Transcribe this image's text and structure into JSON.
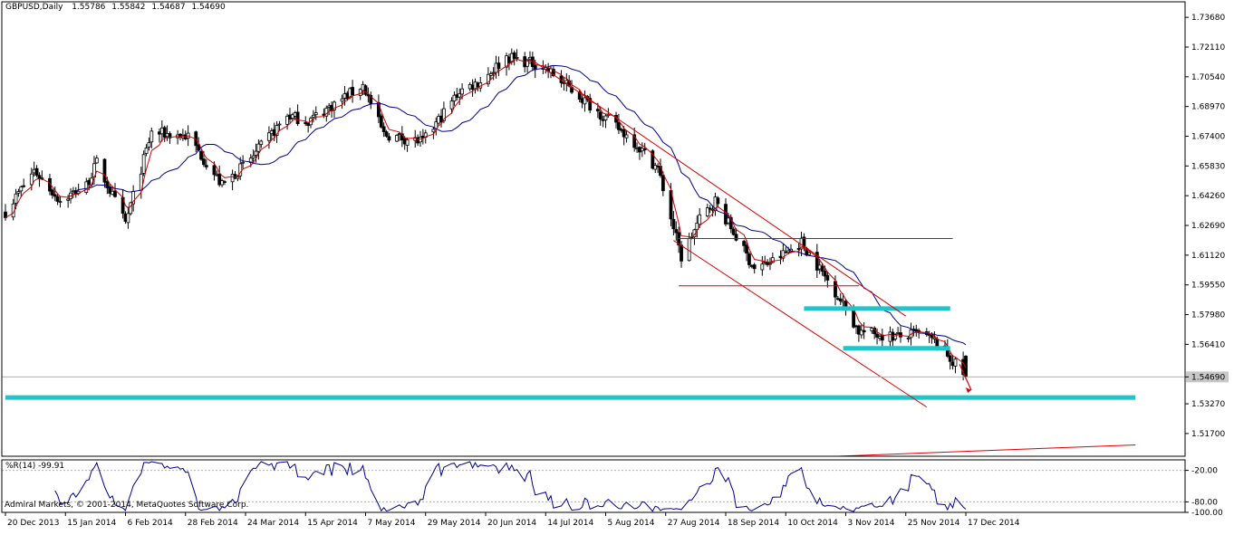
{
  "header": {
    "symbol": "GBPUSD,Daily",
    "open": "1.55786",
    "high": "1.55842",
    "low": "1.54687",
    "close": "1.54690"
  },
  "indicator": {
    "label": "%R(14) -99.91",
    "ticks": [
      "-20.00",
      "-80.00",
      "-100.00"
    ]
  },
  "copyright": "Admiral Markets, © 2001-2014, MetaQuotes Software Corp.",
  "price_axis": {
    "ticks": [
      "1.73680",
      "1.72110",
      "1.70540",
      "1.68970",
      "1.67400",
      "1.65830",
      "1.64260",
      "1.62690",
      "1.61120",
      "1.59550",
      "1.57980",
      "1.56410",
      "1.54690",
      "1.53270",
      "1.51700"
    ],
    "current_price": "1.54690"
  },
  "date_axis": {
    "ticks": [
      "20 Dec 2013",
      "15 Jan 2014",
      "6 Feb 2014",
      "28 Feb 2014",
      "24 Mar 2014",
      "15 Apr 2014",
      "7 May 2014",
      "29 May 2014",
      "20 Jun 2014",
      "14 Jul 2014",
      "5 Aug 2014",
      "27 Aug 2014",
      "18 Sep 2014",
      "10 Oct 2014",
      "3 Nov 2014",
      "25 Nov 2014",
      "17 Dec 2014"
    ]
  },
  "colors": {
    "bull": "#ffffff",
    "bear": "#000000",
    "ma": "#00008b",
    "ema": "#cc0000",
    "trendline": "#dd0000",
    "support": "#22c4cc",
    "wpr": "#00008b",
    "currentline": "#b0b0b0"
  },
  "chart_data": {
    "type": "candlestick",
    "symbol": "GBPUSD",
    "timeframe": "Daily",
    "ylim": [
      1.505,
      1.745
    ],
    "x_start": "2013-12-20",
    "x_end": "2014-12-23",
    "anchors": [
      {
        "date": "2013-12-20",
        "price": 1.634
      },
      {
        "date": "2013-12-31",
        "price": 1.656
      },
      {
        "date": "2014-01-10",
        "price": 1.64
      },
      {
        "date": "2014-01-20",
        "price": 1.648
      },
      {
        "date": "2014-01-24",
        "price": 1.66
      },
      {
        "date": "2014-02-04",
        "price": 1.628
      },
      {
        "date": "2014-02-14",
        "price": 1.676
      },
      {
        "date": "2014-02-28",
        "price": 1.674
      },
      {
        "date": "2014-03-13",
        "price": 1.648
      },
      {
        "date": "2014-03-24",
        "price": 1.662
      },
      {
        "date": "2014-04-07",
        "price": 1.685
      },
      {
        "date": "2014-04-15",
        "price": 1.682
      },
      {
        "date": "2014-05-06",
        "price": 1.701
      },
      {
        "date": "2014-05-14",
        "price": 1.675
      },
      {
        "date": "2014-05-29",
        "price": 1.671
      },
      {
        "date": "2014-06-12",
        "price": 1.698
      },
      {
        "date": "2014-06-20",
        "price": 1.703
      },
      {
        "date": "2014-06-30",
        "price": 1.716
      },
      {
        "date": "2014-07-14",
        "price": 1.711
      },
      {
        "date": "2014-08-05",
        "price": 1.686
      },
      {
        "date": "2014-08-18",
        "price": 1.671
      },
      {
        "date": "2014-08-27",
        "price": 1.657
      },
      {
        "date": "2014-09-05",
        "price": 1.61
      },
      {
        "date": "2014-09-12",
        "price": 1.63
      },
      {
        "date": "2014-09-18",
        "price": 1.64
      },
      {
        "date": "2014-10-03",
        "price": 1.604
      },
      {
        "date": "2014-10-10",
        "price": 1.608
      },
      {
        "date": "2014-10-21",
        "price": 1.618
      },
      {
        "date": "2014-11-03",
        "price": 1.592
      },
      {
        "date": "2014-11-12",
        "price": 1.571
      },
      {
        "date": "2014-11-21",
        "price": 1.569
      },
      {
        "date": "2014-11-28",
        "price": 1.568
      },
      {
        "date": "2014-12-05",
        "price": 1.57
      },
      {
        "date": "2014-12-12",
        "price": 1.565
      },
      {
        "date": "2014-12-18",
        "price": 1.555
      },
      {
        "date": "2014-12-23",
        "price": 1.547
      }
    ],
    "trendlines": [
      {
        "color": "trendline",
        "from": {
          "date": "2014-07-10",
          "price": 1.714
        },
        "to": {
          "date": "2014-11-30",
          "price": 1.579
        }
      },
      {
        "color": "trendline",
        "from": {
          "date": "2014-09-02",
          "price": 1.619
        },
        "to": {
          "date": "2014-12-08",
          "price": 1.531
        }
      },
      {
        "color": "trendline",
        "from": {
          "date": "2014-09-03",
          "price": 1.62
        },
        "to": {
          "date": "2014-12-18",
          "price": 1.62
        }
      },
      {
        "color": "trendline",
        "from": {
          "date": "2014-09-04",
          "price": 1.595
        },
        "to": {
          "date": "2014-11-12",
          "price": 1.595
        }
      },
      {
        "color": "trendline",
        "from": {
          "date": "2014-11-04",
          "price": 1.505
        },
        "to": {
          "date": "2015-02-26",
          "price": 1.511
        }
      }
    ],
    "support_lines": [
      {
        "from": "2013-12-20",
        "to": "2015-02-26",
        "price": 1.536
      },
      {
        "from": "2014-10-22",
        "to": "2014-12-17",
        "price": 1.583
      },
      {
        "from": "2014-11-06",
        "to": "2014-12-17",
        "price": 1.562
      }
    ],
    "current_price": 1.5469,
    "arrow": {
      "from": {
        "date": "2014-12-22",
        "price": 1.544
      },
      "to": {
        "date": "2014-12-23",
        "price": 1.538
      }
    },
    "wpr_ylim": [
      -100,
      0
    ],
    "wpr_levels": [
      -20,
      -80
    ]
  }
}
